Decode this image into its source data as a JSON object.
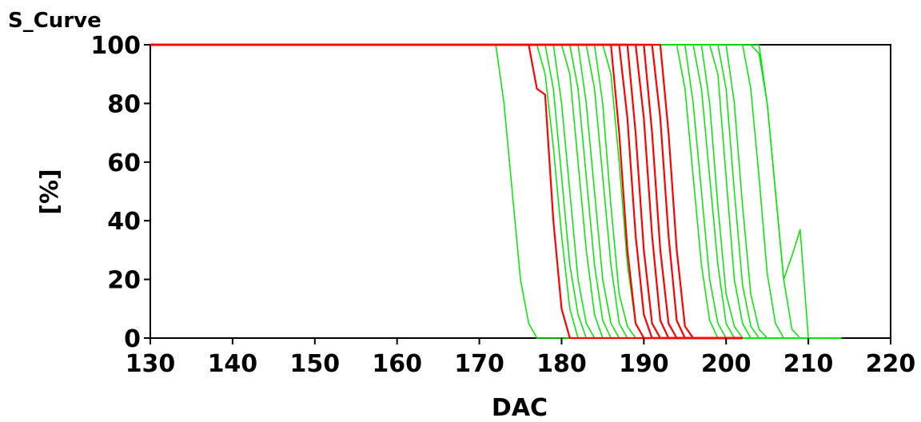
{
  "chart_data": {
    "type": "line",
    "title": "S_Curve",
    "xlabel": "DAC",
    "ylabel": "[%]",
    "xlim": [
      130,
      220
    ],
    "ylim": [
      0,
      100
    ],
    "xticks": [
      "130",
      "140",
      "150",
      "160",
      "170",
      "180",
      "190",
      "200",
      "210",
      "220"
    ],
    "yticks": [
      "0",
      "20",
      "40",
      "60",
      "80",
      "100"
    ],
    "grid": false,
    "colors": {
      "red_group": "#ff0000",
      "green_group": "#00e600"
    },
    "series": [
      {
        "group": "green",
        "x": [
          130,
          172,
          173,
          174,
          175,
          176,
          177,
          214
        ],
        "y": [
          100,
          100,
          80,
          50,
          20,
          5,
          0,
          0
        ]
      },
      {
        "group": "green",
        "x": [
          130,
          177,
          178,
          179,
          180,
          181,
          182,
          214
        ],
        "y": [
          100,
          100,
          90,
          65,
          35,
          10,
          0,
          0
        ]
      },
      {
        "group": "green",
        "x": [
          130,
          178,
          179,
          180,
          181,
          182,
          183,
          214
        ],
        "y": [
          100,
          100,
          85,
          55,
          25,
          8,
          0,
          0
        ]
      },
      {
        "group": "green",
        "x": [
          130,
          179,
          180,
          181,
          182,
          183,
          184,
          214
        ],
        "y": [
          100,
          100,
          80,
          50,
          20,
          5,
          0,
          0
        ]
      },
      {
        "group": "green",
        "x": [
          130,
          180,
          181,
          182,
          183,
          184,
          185,
          214
        ],
        "y": [
          100,
          100,
          90,
          60,
          30,
          8,
          0,
          0
        ]
      },
      {
        "group": "green",
        "x": [
          130,
          181,
          182,
          183,
          184,
          185,
          186,
          214
        ],
        "y": [
          100,
          100,
          85,
          55,
          25,
          6,
          0,
          0
        ]
      },
      {
        "group": "green",
        "x": [
          130,
          182,
          183,
          184,
          185,
          186,
          187,
          214
        ],
        "y": [
          100,
          100,
          80,
          50,
          20,
          5,
          0,
          0
        ]
      },
      {
        "group": "green",
        "x": [
          130,
          183,
          184,
          185,
          186,
          187,
          188,
          214
        ],
        "y": [
          100,
          100,
          85,
          55,
          25,
          5,
          0,
          0
        ]
      },
      {
        "group": "green",
        "x": [
          130,
          184,
          185,
          186,
          187,
          188,
          189,
          214
        ],
        "y": [
          100,
          100,
          80,
          45,
          15,
          4,
          0,
          0
        ]
      },
      {
        "group": "green",
        "x": [
          130,
          185,
          186,
          187,
          188,
          189,
          190,
          214
        ],
        "y": [
          100,
          100,
          90,
          60,
          25,
          5,
          0,
          0
        ]
      },
      {
        "group": "green",
        "x": [
          130,
          194,
          195,
          196,
          197,
          198,
          199,
          214
        ],
        "y": [
          100,
          100,
          85,
          55,
          25,
          6,
          0,
          0
        ]
      },
      {
        "group": "green",
        "x": [
          130,
          195,
          196,
          197,
          198,
          199,
          200,
          214
        ],
        "y": [
          100,
          100,
          80,
          50,
          20,
          5,
          0,
          0
        ]
      },
      {
        "group": "green",
        "x": [
          130,
          196,
          197,
          198,
          199,
          200,
          201,
          214
        ],
        "y": [
          100,
          100,
          85,
          55,
          25,
          5,
          0,
          0
        ]
      },
      {
        "group": "green",
        "x": [
          130,
          197,
          198,
          199,
          200,
          201,
          202,
          214
        ],
        "y": [
          100,
          100,
          80,
          45,
          15,
          4,
          0,
          0
        ]
      },
      {
        "group": "green",
        "x": [
          130,
          198,
          199,
          200,
          201,
          202,
          203,
          214
        ],
        "y": [
          100,
          100,
          90,
          55,
          20,
          5,
          0,
          0
        ]
      },
      {
        "group": "green",
        "x": [
          130,
          199,
          200,
          201,
          202,
          203,
          204,
          214
        ],
        "y": [
          100,
          100,
          85,
          50,
          18,
          4,
          0,
          0
        ]
      },
      {
        "group": "green",
        "x": [
          130,
          200,
          201,
          202,
          203,
          204,
          205,
          214
        ],
        "y": [
          100,
          100,
          80,
          45,
          15,
          3,
          0,
          0
        ]
      },
      {
        "group": "green",
        "x": [
          130,
          202,
          203,
          204,
          205,
          206,
          207,
          214
        ],
        "y": [
          100,
          100,
          85,
          55,
          22,
          5,
          0,
          0
        ]
      },
      {
        "group": "green",
        "x": [
          130,
          204,
          205,
          206,
          207,
          208,
          209,
          214
        ],
        "y": [
          100,
          100,
          80,
          50,
          20,
          3,
          0,
          0
        ]
      },
      {
        "group": "green",
        "x": [
          130,
          203,
          204,
          205,
          206,
          207,
          208,
          209,
          210,
          214
        ],
        "y": [
          100,
          100,
          97,
          80,
          50,
          20,
          28,
          37,
          0,
          0
        ]
      },
      {
        "group": "red",
        "x": [
          130,
          176,
          177,
          178,
          179,
          180,
          181,
          202
        ],
        "y": [
          100,
          100,
          85,
          83,
          40,
          10,
          0,
          0
        ]
      },
      {
        "group": "red",
        "x": [
          130,
          186,
          187,
          188,
          189,
          190,
          202
        ],
        "y": [
          100,
          100,
          70,
          30,
          5,
          0,
          0
        ]
      },
      {
        "group": "red",
        "x": [
          130,
          187,
          188,
          189,
          190,
          191,
          202
        ],
        "y": [
          100,
          100,
          75,
          35,
          8,
          0,
          0
        ]
      },
      {
        "group": "red",
        "x": [
          130,
          188,
          189,
          190,
          191,
          192,
          202
        ],
        "y": [
          100,
          100,
          70,
          30,
          5,
          0,
          0
        ]
      },
      {
        "group": "red",
        "x": [
          130,
          189,
          190,
          191,
          192,
          193,
          202
        ],
        "y": [
          100,
          100,
          75,
          35,
          6,
          0,
          0
        ]
      },
      {
        "group": "red",
        "x": [
          130,
          190,
          191,
          192,
          193,
          194,
          202
        ],
        "y": [
          100,
          100,
          70,
          30,
          5,
          0,
          0
        ]
      },
      {
        "group": "red",
        "x": [
          130,
          191,
          192,
          193,
          194,
          195,
          202
        ],
        "y": [
          100,
          100,
          75,
          35,
          6,
          0,
          0
        ]
      },
      {
        "group": "red",
        "x": [
          130,
          192,
          193,
          194,
          195,
          196,
          202
        ],
        "y": [
          100,
          100,
          70,
          30,
          4,
          0,
          0
        ]
      }
    ]
  }
}
